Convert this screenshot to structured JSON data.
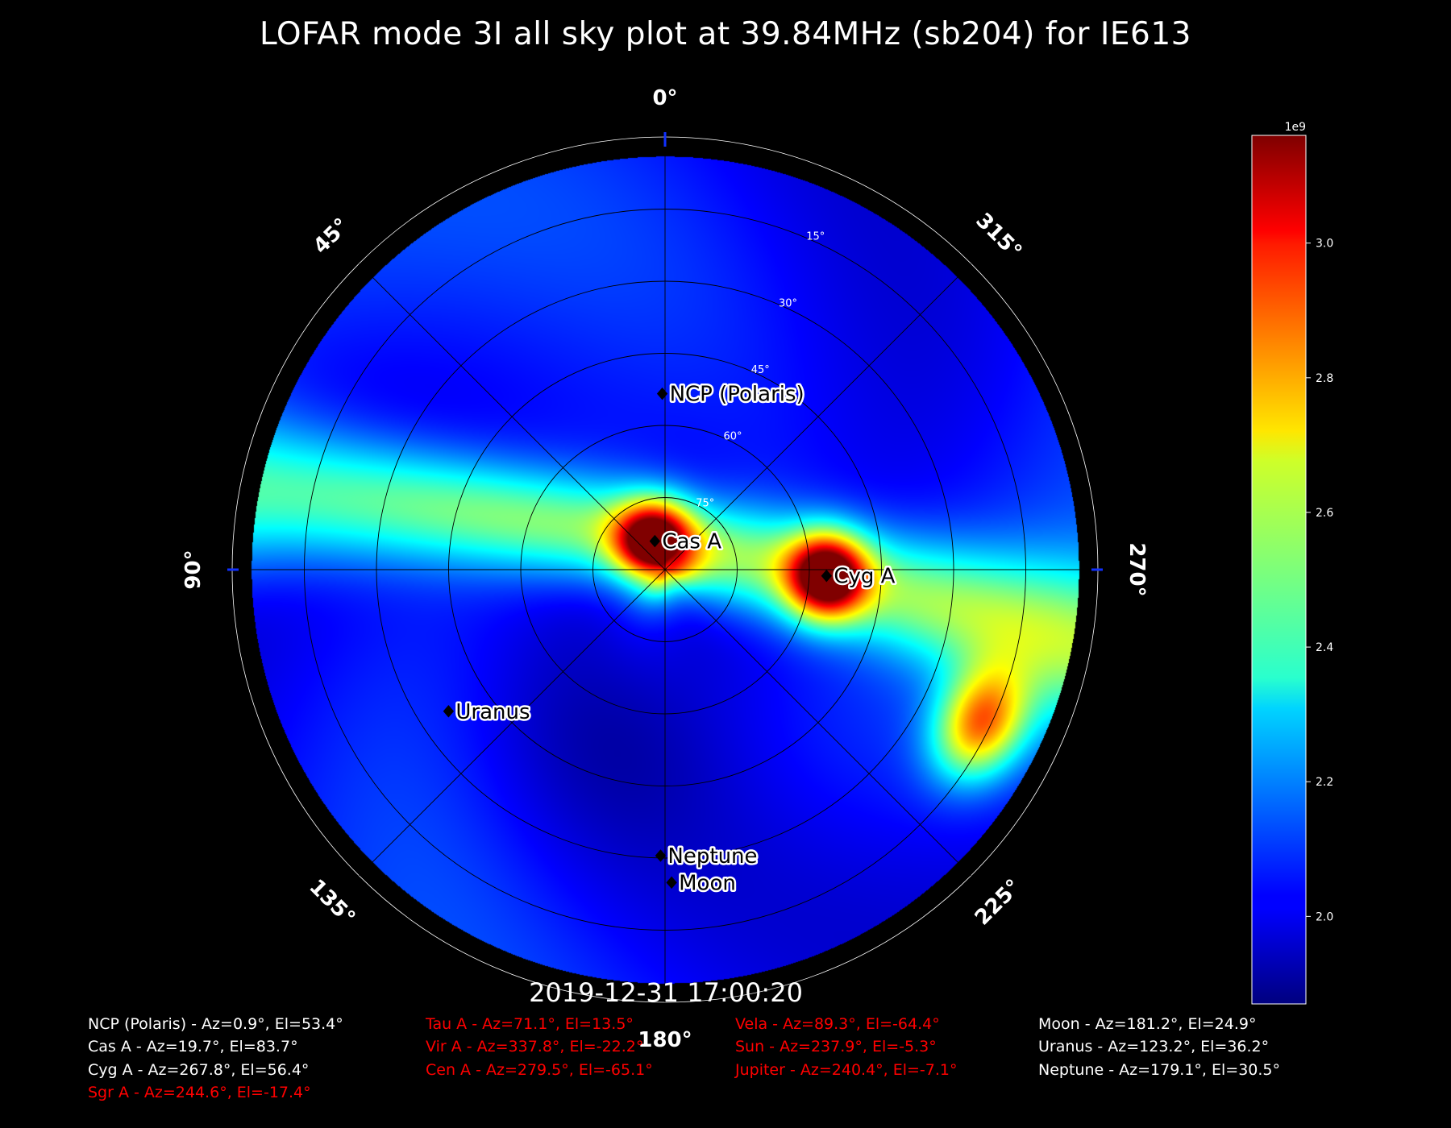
{
  "title": "LOFAR mode 3I all sky plot at 39.84MHz (sb204) for IE613",
  "timestamp": "2019-12-31 17:00:20",
  "colors": {
    "visible_text": "#ffffff",
    "below_horizon_text": "#ff0000",
    "background": "#000000",
    "grid": "#000000",
    "frame": "#ffffff"
  },
  "chart_data": {
    "type": "heatmap",
    "projection": "polar (azimuth clockwise-from-top mirrored: 90° left, 270° right; radius = elevation, 90° at center, 0° at rim)",
    "azimuth_labels": [
      "0°",
      "45°",
      "90°",
      "135°",
      "180°",
      "225°",
      "270°",
      "315°"
    ],
    "elevation_labels": [
      "15°",
      "30°",
      "45°",
      "60°",
      "75°"
    ],
    "colorbar": {
      "colormap": "jet",
      "offset_label": "1e9",
      "ticks": [
        "2.0",
        "2.2",
        "2.4",
        "2.6",
        "2.8",
        "3.0"
      ],
      "tick_values": [
        2.0,
        2.2,
        2.4,
        2.6,
        2.8,
        3.0
      ],
      "vmin": 1.87,
      "vmax": 3.16
    },
    "hotspots": [
      {
        "az": 19.7,
        "el": 83.7,
        "value": 3.3,
        "sigma": 0.1
      },
      {
        "az": 267.8,
        "el": 56.4,
        "value": 3.3,
        "sigma": 0.1
      },
      {
        "az": 244.0,
        "el": 17.0,
        "value": 3.05,
        "sigma": 0.11
      }
    ],
    "sources_plotted": [
      {
        "name": "NCP (Polaris)",
        "az": 0.9,
        "el": 53.4
      },
      {
        "name": "Cas A",
        "az": 19.7,
        "el": 83.7
      },
      {
        "name": "Cyg A",
        "az": 267.8,
        "el": 56.4
      },
      {
        "name": "Uranus",
        "az": 123.2,
        "el": 36.2
      },
      {
        "name": "Neptune",
        "az": 179.1,
        "el": 30.5
      },
      {
        "name": "Moon",
        "az": 181.2,
        "el": 24.9
      }
    ]
  },
  "source_list": {
    "col1": [
      {
        "text": "NCP (Polaris) - Az=0.9°, El=53.4°",
        "visible": true
      },
      {
        "text": "Cas A - Az=19.7°, El=83.7°",
        "visible": true
      },
      {
        "text": "Cyg A - Az=267.8°, El=56.4°",
        "visible": true
      },
      {
        "text": "Sgr A - Az=244.6°, El=-17.4°",
        "visible": false
      }
    ],
    "col2": [
      {
        "text": "Tau A - Az=71.1°, El=13.5°",
        "visible": false
      },
      {
        "text": "Vir A - Az=337.8°, El=-22.2°",
        "visible": false
      },
      {
        "text": "Cen A - Az=279.5°, El=-65.1°",
        "visible": false
      }
    ],
    "col3": [
      {
        "text": "Vela - Az=89.3°, El=-64.4°",
        "visible": false
      },
      {
        "text": "Sun - Az=237.9°, El=-5.3°",
        "visible": false
      },
      {
        "text": "Jupiter - Az=240.4°, El=-7.1°",
        "visible": false
      }
    ],
    "col4": [
      {
        "text": "Moon - Az=181.2°, El=24.9°",
        "visible": true
      },
      {
        "text": "Uranus - Az=123.2°, El=36.2°",
        "visible": true
      },
      {
        "text": "Neptune - Az=179.1°, El=30.5°",
        "visible": true
      }
    ]
  }
}
